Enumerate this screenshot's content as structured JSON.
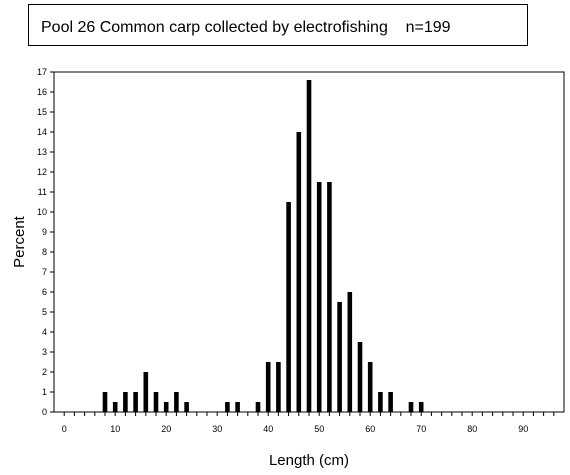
{
  "chart_data": {
    "type": "bar",
    "title": "Pool 26 Common carp collected by electrofishing    n=199",
    "xlabel": "Length (cm)",
    "ylabel": "Percent",
    "xlim": [
      -2,
      98
    ],
    "ylim": [
      0,
      17
    ],
    "xticks": [
      0,
      10,
      20,
      30,
      40,
      50,
      60,
      70,
      80,
      90
    ],
    "yticks": [
      0,
      1,
      2,
      3,
      4,
      5,
      6,
      7,
      8,
      9,
      10,
      11,
      12,
      13,
      14,
      15,
      16,
      17
    ],
    "grid": false,
    "legend": "none",
    "series": [
      {
        "x": [
          8,
          10,
          12,
          14,
          16,
          18,
          20,
          22,
          24,
          32,
          34,
          38,
          40,
          42,
          44,
          46,
          48,
          50,
          52,
          54,
          56,
          58,
          60,
          62,
          64,
          68,
          70
        ],
        "values": [
          1,
          0.5,
          1,
          1,
          2,
          1,
          0.5,
          1,
          0.5,
          0.5,
          0.5,
          0.5,
          2.5,
          2.5,
          10.5,
          14,
          16.6,
          11.5,
          11.5,
          5.5,
          6,
          3.5,
          2.5,
          1,
          1,
          0.5,
          0.5
        ]
      }
    ],
    "colors": {
      "bar": "#000000",
      "axis": "#000000"
    }
  }
}
